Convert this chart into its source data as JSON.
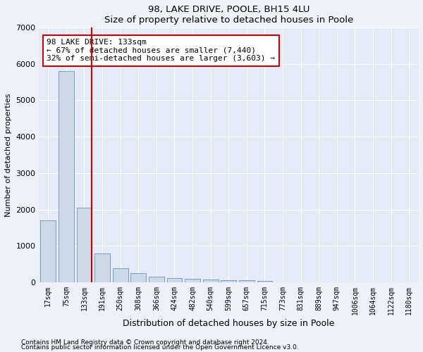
{
  "title1": "98, LAKE DRIVE, POOLE, BH15 4LU",
  "title2": "Size of property relative to detached houses in Poole",
  "xlabel": "Distribution of detached houses by size in Poole",
  "ylabel": "Number of detached properties",
  "categories": [
    "17sqm",
    "75sqm",
    "133sqm",
    "191sqm",
    "250sqm",
    "308sqm",
    "366sqm",
    "424sqm",
    "482sqm",
    "540sqm",
    "599sqm",
    "657sqm",
    "715sqm",
    "773sqm",
    "831sqm",
    "889sqm",
    "947sqm",
    "1006sqm",
    "1064sqm",
    "1122sqm",
    "1180sqm"
  ],
  "values": [
    1700,
    5800,
    2050,
    800,
    380,
    250,
    155,
    120,
    100,
    80,
    65,
    55,
    45,
    0,
    0,
    0,
    0,
    0,
    0,
    0,
    0
  ],
  "highlight_index": 2,
  "bar_color": "#ccd9e8",
  "bar_edge_color": "#7a9ec0",
  "highlight_line_color": "#cc0000",
  "ylim": [
    0,
    7000
  ],
  "yticks": [
    0,
    1000,
    2000,
    3000,
    4000,
    5000,
    6000,
    7000
  ],
  "annotation_text": "98 LAKE DRIVE: 133sqm\n← 67% of detached houses are smaller (7,440)\n32% of semi-detached houses are larger (3,603) →",
  "annotation_box_color": "#ffffff",
  "annotation_box_edge": "#cc0000",
  "footer1": "Contains HM Land Registry data © Crown copyright and database right 2024.",
  "footer2": "Contains public sector information licensed under the Open Government Licence v3.0.",
  "background_color": "#eef2f8",
  "plot_bg_color": "#e4eaf6"
}
